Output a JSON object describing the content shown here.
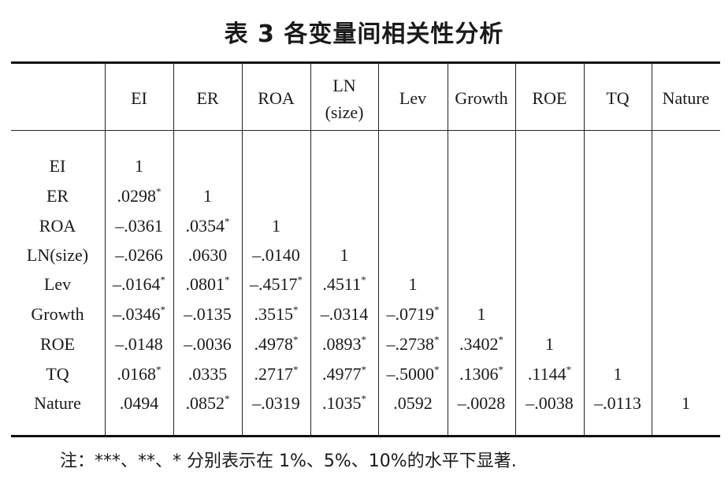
{
  "title": "表 3  各变量间相关性分析",
  "columns": [
    "EI",
    "ER",
    "ROA",
    "LN\n(size)",
    "Lev",
    "Growth",
    "ROE",
    "TQ",
    "Nature"
  ],
  "rows": [
    {
      "label": "EI",
      "cells": [
        "1"
      ]
    },
    {
      "label": "ER",
      "cells": [
        ".0298*",
        "1"
      ]
    },
    {
      "label": "ROA",
      "cells": [
        "–.0361",
        ".0354*",
        "1"
      ]
    },
    {
      "label": "LN(size)",
      "cells": [
        "–.0266",
        ".0630",
        "–.0140",
        "1"
      ]
    },
    {
      "label": "Lev",
      "cells": [
        "–.0164*",
        ".0801*",
        "–.4517*",
        ".4511*",
        "1"
      ]
    },
    {
      "label": "Growth",
      "cells": [
        "–.0346*",
        "–.0135",
        ".3515*",
        "–.0314",
        "–.0719*",
        "1"
      ]
    },
    {
      "label": "ROE",
      "cells": [
        "–.0148",
        "–.0036",
        ".4978*",
        ".0893*",
        "–.2738*",
        ".3402*",
        "1"
      ]
    },
    {
      "label": "TQ",
      "cells": [
        ".0168*",
        ".0335",
        ".2717*",
        ".4977*",
        "–.5000*",
        ".1306*",
        ".1144*",
        "1"
      ]
    },
    {
      "label": "Nature",
      "cells": [
        ".0494",
        ".0852*",
        "–.0319",
        ".1035*",
        ".0592",
        "–.0028",
        "–.0038",
        "–.0113",
        "1"
      ]
    }
  ],
  "note": "注：***、**、* 分别表示在 1%、5%、10%的水平下显著."
}
